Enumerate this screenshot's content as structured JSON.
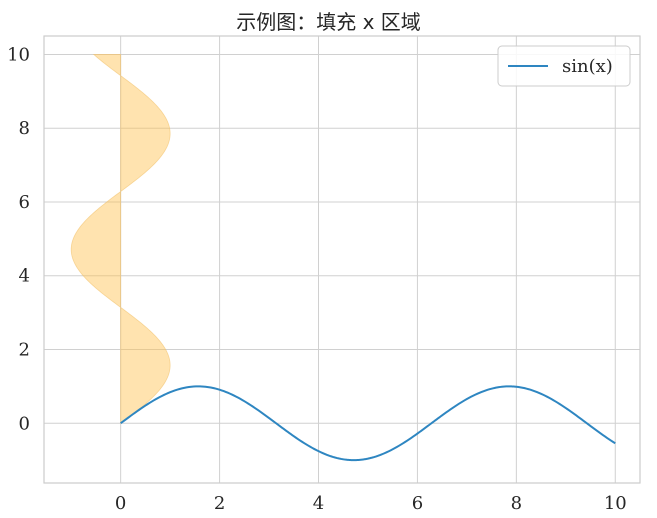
{
  "chart_data": {
    "type": "line",
    "title": "示例图：填充 x 区域",
    "xlabel": "",
    "ylabel": "",
    "xlim": [
      -1.55,
      10.5
    ],
    "ylim": [
      -1.62,
      10.5
    ],
    "xticks": [
      0,
      2,
      4,
      6,
      8,
      10
    ],
    "yticks": [
      0,
      2,
      4,
      6,
      8,
      10
    ],
    "xtick_labels": [
      "0",
      "2",
      "4",
      "6",
      "8",
      "10"
    ],
    "ytick_labels": [
      "0",
      "2",
      "4",
      "6",
      "8",
      "10"
    ],
    "grid": true,
    "legend": {
      "position": "top-right",
      "entries": [
        "sin(x)"
      ]
    },
    "series": [
      {
        "name": "sin(x)",
        "type": "line",
        "color": "#2e86c1",
        "x": [
          0,
          0.5,
          1,
          1.5708,
          2,
          2.5,
          3,
          3.1416,
          3.5,
          4,
          4.5,
          4.7124,
          5,
          5.5,
          6,
          6.2832,
          6.5,
          7,
          7.5,
          7.854,
          8,
          8.5,
          9,
          9.4248,
          9.5,
          10
        ],
        "y": [
          0,
          0.479,
          0.841,
          1.0,
          0.909,
          0.598,
          0.141,
          0.0,
          -0.351,
          -0.757,
          -0.978,
          -1.0,
          -0.959,
          -0.706,
          -0.279,
          0.0,
          0.215,
          0.657,
          0.938,
          1.0,
          0.989,
          0.798,
          0.412,
          0.0,
          -0.075,
          -0.544
        ]
      },
      {
        "name": "",
        "type": "fill_betweenx",
        "color": "#ffc04d",
        "opacity": 0.45,
        "y": [
          0,
          0.5,
          1,
          1.5708,
          2,
          2.5,
          3,
          3.1416,
          3.5,
          4,
          4.5,
          4.7124,
          5,
          5.5,
          6,
          6.2832,
          6.5,
          7,
          7.5,
          7.854,
          8,
          8.5,
          9,
          9.4248,
          9.5,
          10
        ],
        "x": [
          0,
          0.479,
          0.841,
          1.0,
          0.909,
          0.598,
          0.141,
          0.0,
          -0.351,
          -0.757,
          -0.978,
          -1.0,
          -0.959,
          -0.706,
          -0.279,
          0.0,
          0.215,
          0.657,
          0.938,
          1.0,
          0.989,
          0.798,
          0.412,
          0.0,
          -0.075,
          -0.544
        ],
        "baseline_x": 0
      }
    ]
  },
  "colors": {
    "grid": "#d0d0d0",
    "frame": "#cccccc",
    "tick_text": "#262626",
    "fill_edge": "#f2c16b"
  }
}
